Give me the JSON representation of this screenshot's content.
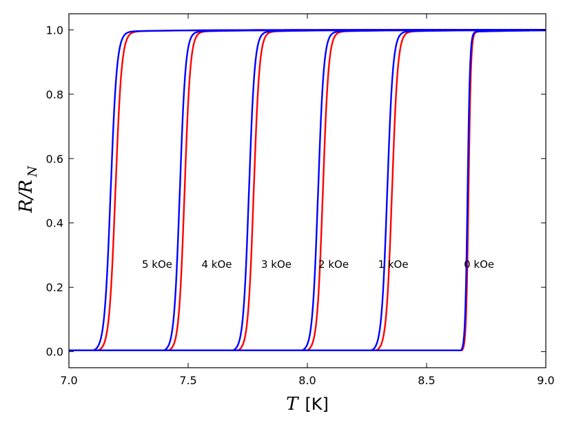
{
  "chart_data": {
    "type": "line",
    "xlabel": {
      "symbol": "T",
      "unit": "[K]"
    },
    "ylabel": {
      "main": "R/R",
      "sub": "N"
    },
    "xlim": [
      7.0,
      9.0
    ],
    "ylim": [
      -0.05,
      1.05
    ],
    "xticks": [
      "7.0",
      "7.5",
      "8.0",
      "8.5",
      "9.0"
    ],
    "yticks": [
      "0.0",
      "0.2",
      "0.4",
      "0.6",
      "0.8",
      "1.0"
    ],
    "grid": false,
    "colors": {
      "red": "#ff0000",
      "blue": "#0000ff"
    },
    "fields": [
      {
        "label": "0 kOe",
        "label_x": 8.72,
        "tc_blue": 8.672,
        "tc_red": 8.676,
        "width": 0.005,
        "label_y": 0.26
      },
      {
        "label": "1 kOe",
        "label_x": 8.36,
        "tc_blue": 8.335,
        "tc_red": 8.355,
        "width": 0.012,
        "label_y": 0.26
      },
      {
        "label": "2 kOe",
        "label_x": 8.11,
        "tc_blue": 8.045,
        "tc_red": 8.065,
        "width": 0.012,
        "label_y": 0.26
      },
      {
        "label": "3 kOe",
        "label_x": 7.87,
        "tc_blue": 7.755,
        "tc_red": 7.775,
        "width": 0.012,
        "label_y": 0.26
      },
      {
        "label": "4 kOe",
        "label_x": 7.62,
        "tc_blue": 7.465,
        "tc_red": 7.485,
        "width": 0.012,
        "label_y": 0.26
      },
      {
        "label": "5 kOe",
        "label_x": 7.37,
        "tc_blue": 7.175,
        "tc_red": 7.195,
        "width": 0.013,
        "label_y": 0.26
      }
    ]
  }
}
